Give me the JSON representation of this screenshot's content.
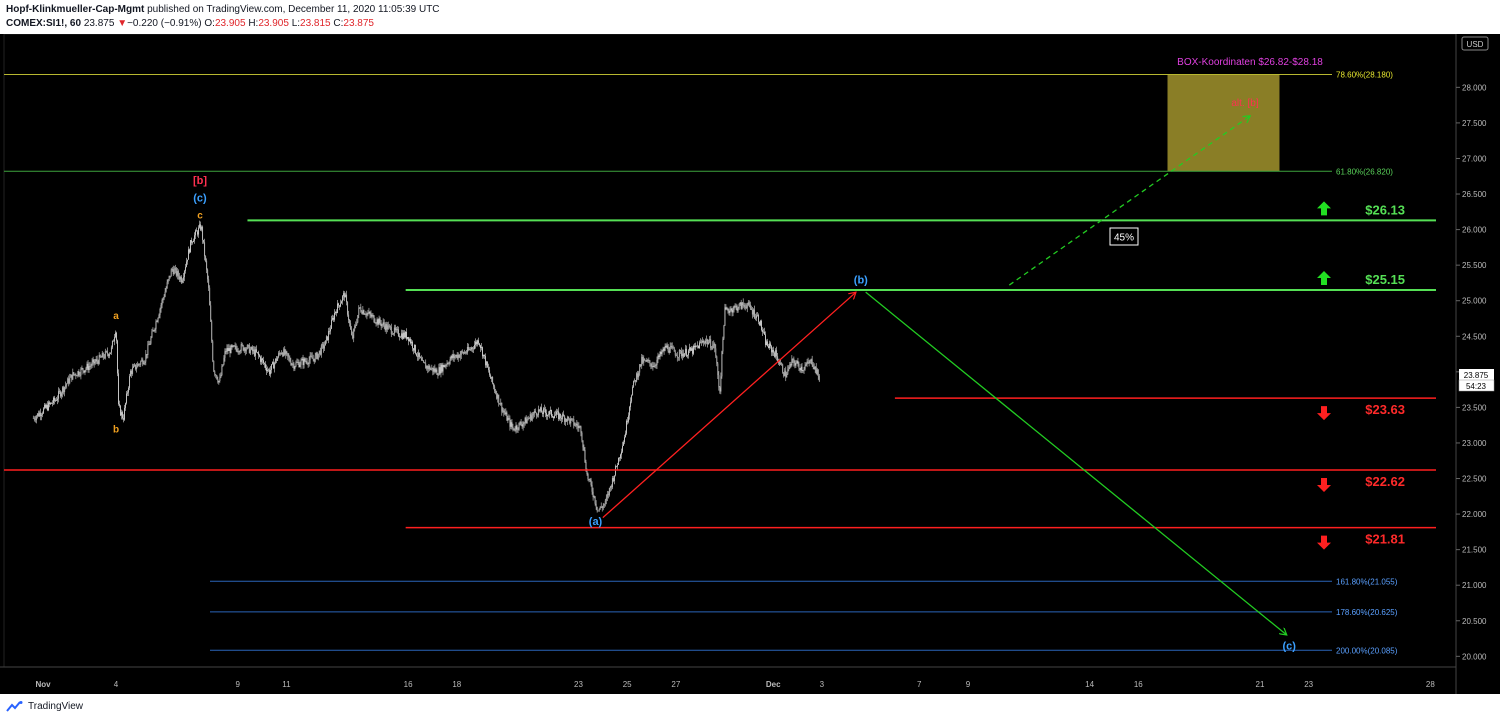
{
  "header": {
    "author": "Hopf-Klinkmueller-Cap-Mgmt",
    "published": "published on TradingView.com, December 11, 2020 11:05:39 UTC",
    "symbol": "COMEX:SI1!, 60",
    "last": "23.875",
    "change_arrow": "▼",
    "change": "−0.220 (−0.91%)",
    "o_label": "O:",
    "o": "23.905",
    "h_label": "H:",
    "h": "23.905",
    "l_label": "L:",
    "l": "23.815",
    "c_label": "C:",
    "c": "23.875"
  },
  "footer": {
    "brand": "TradingView",
    "logo_icon": "tradingview-logo-icon"
  },
  "colors": {
    "background": "#000000",
    "candle": "#d8d8d8",
    "support": "#ff1f1f",
    "resistance": "#55e055",
    "box": "#8a7e26",
    "fib_blue": "#2a64b8",
    "magenta": "#e040e0",
    "wave_blue": "#3ba0ff",
    "wave_orange": "#f0a020",
    "wave_red": "#ff3050"
  },
  "chart_data": {
    "type": "candlestick",
    "title": "COMEX:SI1!, 60",
    "currency_label": "USD",
    "ylim": [
      19.85,
      28.75
    ],
    "y_ticks": [
      "28.000",
      "27.500",
      "27.000",
      "26.500",
      "26.000",
      "25.500",
      "25.000",
      "24.500",
      "24.000",
      "23.500",
      "23.000",
      "22.500",
      "22.000",
      "21.500",
      "21.000",
      "20.500",
      "20.000"
    ],
    "x_ticks": [
      {
        "label": "Nov",
        "day": 0
      },
      {
        "label": "4",
        "day": 3
      },
      {
        "label": "9",
        "day": 8
      },
      {
        "label": "11",
        "day": 10
      },
      {
        "label": "16",
        "day": 15
      },
      {
        "label": "18",
        "day": 17
      },
      {
        "label": "23",
        "day": 22
      },
      {
        "label": "25",
        "day": 24
      },
      {
        "label": "27",
        "day": 26
      },
      {
        "label": "Dec",
        "day": 30
      },
      {
        "label": "3",
        "day": 32
      },
      {
        "label": "7",
        "day": 36
      },
      {
        "label": "9",
        "day": 38
      },
      {
        "label": "14",
        "day": 43
      },
      {
        "label": "16",
        "day": 45
      },
      {
        "label": "21",
        "day": 50
      },
      {
        "label": "23",
        "day": 52
      },
      {
        "label": "28",
        "day": 57
      }
    ],
    "price_anchors": [
      [
        -0.4,
        23.35
      ],
      [
        0.5,
        23.6
      ],
      [
        1.2,
        23.95
      ],
      [
        2.0,
        24.1
      ],
      [
        2.8,
        24.3
      ],
      [
        3.0,
        24.65
      ],
      [
        3.1,
        23.5
      ],
      [
        3.3,
        23.35
      ],
      [
        3.6,
        24.0
      ],
      [
        4.2,
        24.2
      ],
      [
        4.9,
        25.0
      ],
      [
        5.3,
        25.45
      ],
      [
        5.7,
        25.3
      ],
      [
        6.1,
        25.85
      ],
      [
        6.5,
        26.05
      ],
      [
        6.8,
        25.2
      ],
      [
        7.0,
        24.05
      ],
      [
        7.25,
        23.85
      ],
      [
        7.5,
        24.3
      ],
      [
        8.3,
        24.35
      ],
      [
        8.8,
        24.25
      ],
      [
        9.3,
        24.0
      ],
      [
        9.8,
        24.3
      ],
      [
        10.3,
        24.1
      ],
      [
        11.2,
        24.2
      ],
      [
        11.6,
        24.4
      ],
      [
        12.0,
        24.85
      ],
      [
        12.4,
        25.1
      ],
      [
        12.7,
        24.45
      ],
      [
        13.0,
        24.9
      ],
      [
        13.8,
        24.7
      ],
      [
        14.5,
        24.55
      ],
      [
        15.0,
        24.5
      ],
      [
        15.6,
        24.1
      ],
      [
        16.2,
        24.0
      ],
      [
        16.8,
        24.2
      ],
      [
        17.5,
        24.3
      ],
      [
        17.9,
        24.45
      ],
      [
        18.4,
        23.9
      ],
      [
        18.9,
        23.45
      ],
      [
        19.3,
        23.2
      ],
      [
        19.8,
        23.3
      ],
      [
        20.3,
        23.45
      ],
      [
        21.0,
        23.4
      ],
      [
        21.5,
        23.35
      ],
      [
        22.1,
        23.2
      ],
      [
        22.35,
        22.55
      ],
      [
        22.55,
        22.35
      ],
      [
        22.8,
        22.05
      ],
      [
        23.1,
        22.15
      ],
      [
        23.5,
        22.6
      ],
      [
        23.9,
        23.1
      ],
      [
        24.2,
        23.75
      ],
      [
        24.6,
        24.15
      ],
      [
        25.1,
        24.1
      ],
      [
        25.6,
        24.35
      ],
      [
        26.1,
        24.25
      ],
      [
        26.7,
        24.3
      ],
      [
        27.2,
        24.45
      ],
      [
        27.6,
        24.35
      ],
      [
        27.8,
        23.7
      ],
      [
        28.0,
        24.85
      ],
      [
        28.4,
        24.9
      ],
      [
        28.9,
        24.95
      ],
      [
        29.4,
        24.75
      ],
      [
        29.7,
        24.4
      ],
      [
        30.1,
        24.25
      ],
      [
        30.5,
        23.95
      ],
      [
        30.8,
        24.15
      ],
      [
        31.2,
        24.05
      ],
      [
        31.6,
        24.15
      ],
      [
        31.9,
        23.9
      ]
    ],
    "support_levels": [
      {
        "label": "$23.63",
        "value": 23.63
      },
      {
        "label": "$22.62",
        "value": 22.62
      },
      {
        "label": "$21.81",
        "value": 21.81
      }
    ],
    "resistance_levels": [
      {
        "label": "$26.13",
        "value": 26.13
      },
      {
        "label": "$25.15",
        "value": 25.15
      }
    ],
    "fib_levels": [
      {
        "label": "78.60%(28.180)",
        "value": 28.18
      },
      {
        "label": "61.80%(26.820)",
        "value": 26.82
      },
      {
        "label": "161.80%(21.055)",
        "value": 21.055
      },
      {
        "label": "178.60%(20.625)",
        "value": 20.625
      },
      {
        "label": "200.00%(20.085)",
        "value": 20.085
      }
    ],
    "box": {
      "title": "BOX-Koordinaten $26.82-$28.18",
      "low": 26.82,
      "high": 28.18,
      "x_from_day": 46.2,
      "x_to_day": 50.8
    },
    "box_target_label": "alt. [b]",
    "percent_label": "45%",
    "current_price": "23.875",
    "countdown": "54:23",
    "wave_labels": [
      {
        "text": "a",
        "color": "wave_orange",
        "day": 3.0,
        "value": 24.8
      },
      {
        "text": "b",
        "color": "wave_orange",
        "day": 3.0,
        "value": 23.2
      },
      {
        "text": "[b]",
        "color": "wave_red",
        "day": 6.45,
        "value": 26.7
      },
      {
        "text": "(c)",
        "color": "wave_blue",
        "day": 6.45,
        "value": 26.45
      },
      {
        "text": "c",
        "color": "wave_orange",
        "day": 6.45,
        "value": 26.21
      },
      {
        "text": "(a)",
        "color": "wave_blue",
        "day": 22.7,
        "value": 21.9
      },
      {
        "text": "(b)",
        "color": "wave_blue",
        "day": 33.6,
        "value": 25.3
      },
      {
        "text": "(c)",
        "color": "wave_blue",
        "day": 51.2,
        "value": 20.15
      }
    ],
    "wave_projection": [
      {
        "from": [
          23.0,
          21.95
        ],
        "to": [
          33.4,
          25.12
        ],
        "color": "#ff2020",
        "dashed": false
      },
      {
        "from": [
          33.8,
          25.12
        ],
        "to": [
          51.1,
          20.3
        ],
        "color": "#22cc22",
        "dashed": false
      },
      {
        "from": [
          39.7,
          25.22
        ],
        "to": [
          49.6,
          27.6
        ],
        "color": "#22cc22",
        "dashed": true
      }
    ]
  }
}
